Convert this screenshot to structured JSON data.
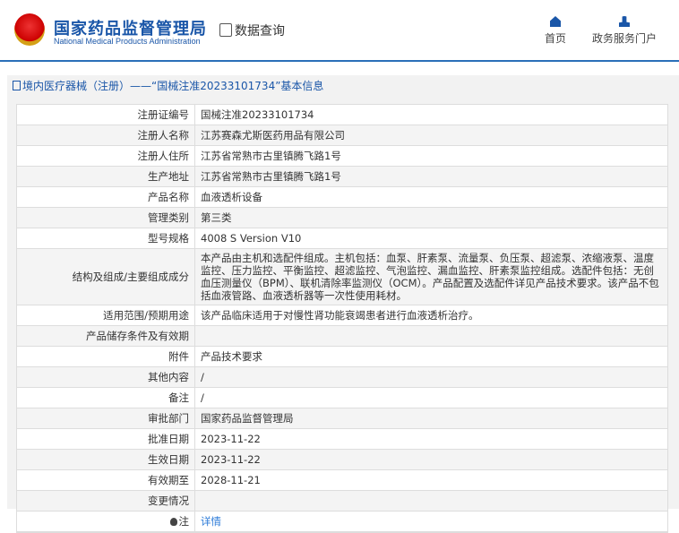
{
  "header": {
    "logo_cn": "国家药品监督管理局",
    "logo_en": "National Medical Products Administration",
    "data_query": "数据查询",
    "nav": [
      {
        "label": "首页",
        "icon": "home-icon"
      },
      {
        "label": "政务服务门户",
        "icon": "user-icon"
      }
    ]
  },
  "panel": {
    "title": "境内医疗器械（注册）——“国械注准20233101734”基本信息"
  },
  "rows": [
    {
      "label": "注册证编号",
      "value": "国械注准20233101734"
    },
    {
      "label": "注册人名称",
      "value": "江苏赛森尤斯医药用品有限公司"
    },
    {
      "label": "注册人住所",
      "value": "江苏省常熟市古里镇腾飞路1号"
    },
    {
      "label": "生产地址",
      "value": "江苏省常熟市古里镇腾飞路1号"
    },
    {
      "label": "产品名称",
      "value": "血液透析设备"
    },
    {
      "label": "管理类别",
      "value": "第三类"
    },
    {
      "label": "型号规格",
      "value": "4008 S Version V10"
    },
    {
      "label": "结构及组成/主要组成成分",
      "value": "本产品由主机和选配件组成。主机包括：血泵、肝素泵、流量泵、负压泵、超滤泵、浓缩液泵、温度监控、压力监控、平衡监控、超滤监控、气泡监控、漏血监控、肝素泵监控组成。选配件包括：无创血压测量仪（BPM）、联机清除率监测仪（OCM）。产品配置及选配件详见产品技术要求。该产品不包括血液管路、血液透析器等一次性使用耗材。"
    },
    {
      "label": "适用范围/预期用途",
      "value": "该产品临床适用于对慢性肾功能衰竭患者进行血液透析治疗。"
    },
    {
      "label": "产品储存条件及有效期",
      "value": ""
    },
    {
      "label": "附件",
      "value": "产品技术要求"
    },
    {
      "label": "其他内容",
      "value": "/"
    },
    {
      "label": "备注",
      "value": "/"
    },
    {
      "label": "审批部门",
      "value": "国家药品监督管理局"
    },
    {
      "label": "批准日期",
      "value": "2023-11-22"
    },
    {
      "label": "生效日期",
      "value": "2023-11-22"
    },
    {
      "label": "有效期至",
      "value": "2028-11-21"
    },
    {
      "label": "变更情况",
      "value": ""
    },
    {
      "label": "注",
      "value": "详情"
    }
  ]
}
